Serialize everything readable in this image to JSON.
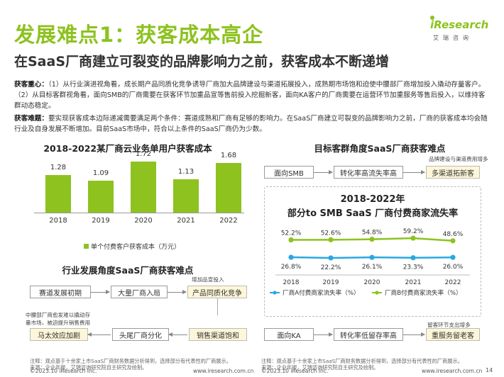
{
  "header": {
    "title": "发展难点1：获客成本高企",
    "subtitle": "在SaaS厂商建立可裂变的品牌影响力之前，获客成本不断递增",
    "logo": "iResearch",
    "logo_sub": "艾瑞咨询"
  },
  "text": {
    "focus_label": "获客重心：",
    "focus_body": "（1）从行业演进视角看，成长期产品同质化竞争诱导厂商加大品牌建设与渠道拓展投入，成熟期市场饱和迫使中腰部厂商增加投入撬动存量客户。（2）从目标客群视角看，面向SMB的厂商需要在获客环节加重品宣等售前投入挖掘新客，面向KA客户的厂商需要在运营环节加重服务等售后投入，以维持客群动态稳定。",
    "difficulty_label": "获客难题：",
    "difficulty_body": "要实现获客成本边际递减需要满足两个条件：赛道成熟和厂商有足够的影响力。在SaaS厂商建立可裂变的品牌影响力之前，厂商的获客成本均会随行业及自身发展不断增加。目前SaaS市场中，符合以上条件的SaaS厂商仍为少数。"
  },
  "bar_section": {
    "title": "2018-2022某厂商云业务单用户获客成本",
    "legend": "单个付费客户获客成本（万元）"
  },
  "chart_data": [
    {
      "type": "bar",
      "title": "2018-2022某厂商云业务单用户获客成本",
      "categories": [
        "2018",
        "2019",
        "2020",
        "2021",
        "2022"
      ],
      "series": [
        {
          "name": "单个付费客户获客成本（万元）",
          "values": [
            1.28,
            1.09,
            1.72,
            1.13,
            1.68
          ]
        }
      ],
      "value_labels": [
        "1.28",
        "1.09",
        "1.72",
        "1.13",
        "1.68"
      ],
      "color": "#8dc21f"
    },
    {
      "type": "line",
      "title": "2018-2022年部分to SMB SaaS 厂商付费商家流失率",
      "title_line1": "2018-2022年",
      "title_line2": "部分to SMB SaaS 厂商付费商家流失率",
      "categories": [
        "2018",
        "2019",
        "2020",
        "2021",
        "2022"
      ],
      "series": [
        {
          "name": "厂商A付费商家流失率（%）",
          "values": [
            26.8,
            22.2,
            26.1,
            23.3,
            26.0
          ],
          "labels": [
            "26.8%",
            "22.2%",
            "26.1%",
            "23.3%",
            "26.0%"
          ],
          "color": "#29a8e0"
        },
        {
          "name": "厂商B付费商家流失率（%）",
          "values": [
            52.2,
            52.6,
            54.8,
            59.2,
            48.6
          ],
          "labels": [
            "52.2%",
            "52.6%",
            "54.8%",
            "59.2%",
            "48.6%"
          ],
          "color": "#8dc21f"
        }
      ]
    }
  ],
  "industry_flow": {
    "title": "行业发展角度SaaS厂商获客难点",
    "box1": "赛道发展初期",
    "box2": "大量厂商入局",
    "box3": "产品同质化竞争",
    "note_top": "增加品宣投入",
    "box4": "马太效应加剧",
    "box5": "头尾厂商分化",
    "box6": "销售渠道饱和",
    "note_left_1": "中腰部厂商愈发难以撬动存",
    "note_left_2": "量市场，被迫提升销售费用"
  },
  "customer_flow": {
    "title": "目标客群角度SaaS厂商获客难点",
    "smb_box": "面向SMB",
    "smb_mid": "转化率高流失率高",
    "smb_note": "品牌建设与渠道费用增多",
    "smb_end": "多渠道拓新客",
    "ka_box": "面向KA",
    "ka_mid": "转化率低留存率高",
    "ka_note": "留客环节支出增多",
    "ka_end": "重服务留老客"
  },
  "footer": {
    "left_note": "注释：观点基于十余家上市SaaS厂商财务数据分析得到，选择部分有代表性的厂商展示。",
    "left_source": "来源：企业年报，艾瑞咨询研究院自主研究及绘制。",
    "right_note": "注释：观点基于十余家上市SaaS厂商财务数据分析得到，选择部分有代表性的厂商展示。",
    "right_source": "来源：企业年报，艾瑞咨询研究院自主研究及绘制。",
    "copy_left": "©2023.10 iResearch Inc.",
    "url_left": "www.iresearch.com.cn",
    "copy_right": "©2023.10 iResearch Inc.",
    "url_right": "www.iresearch.com.cn",
    "page": "14"
  }
}
